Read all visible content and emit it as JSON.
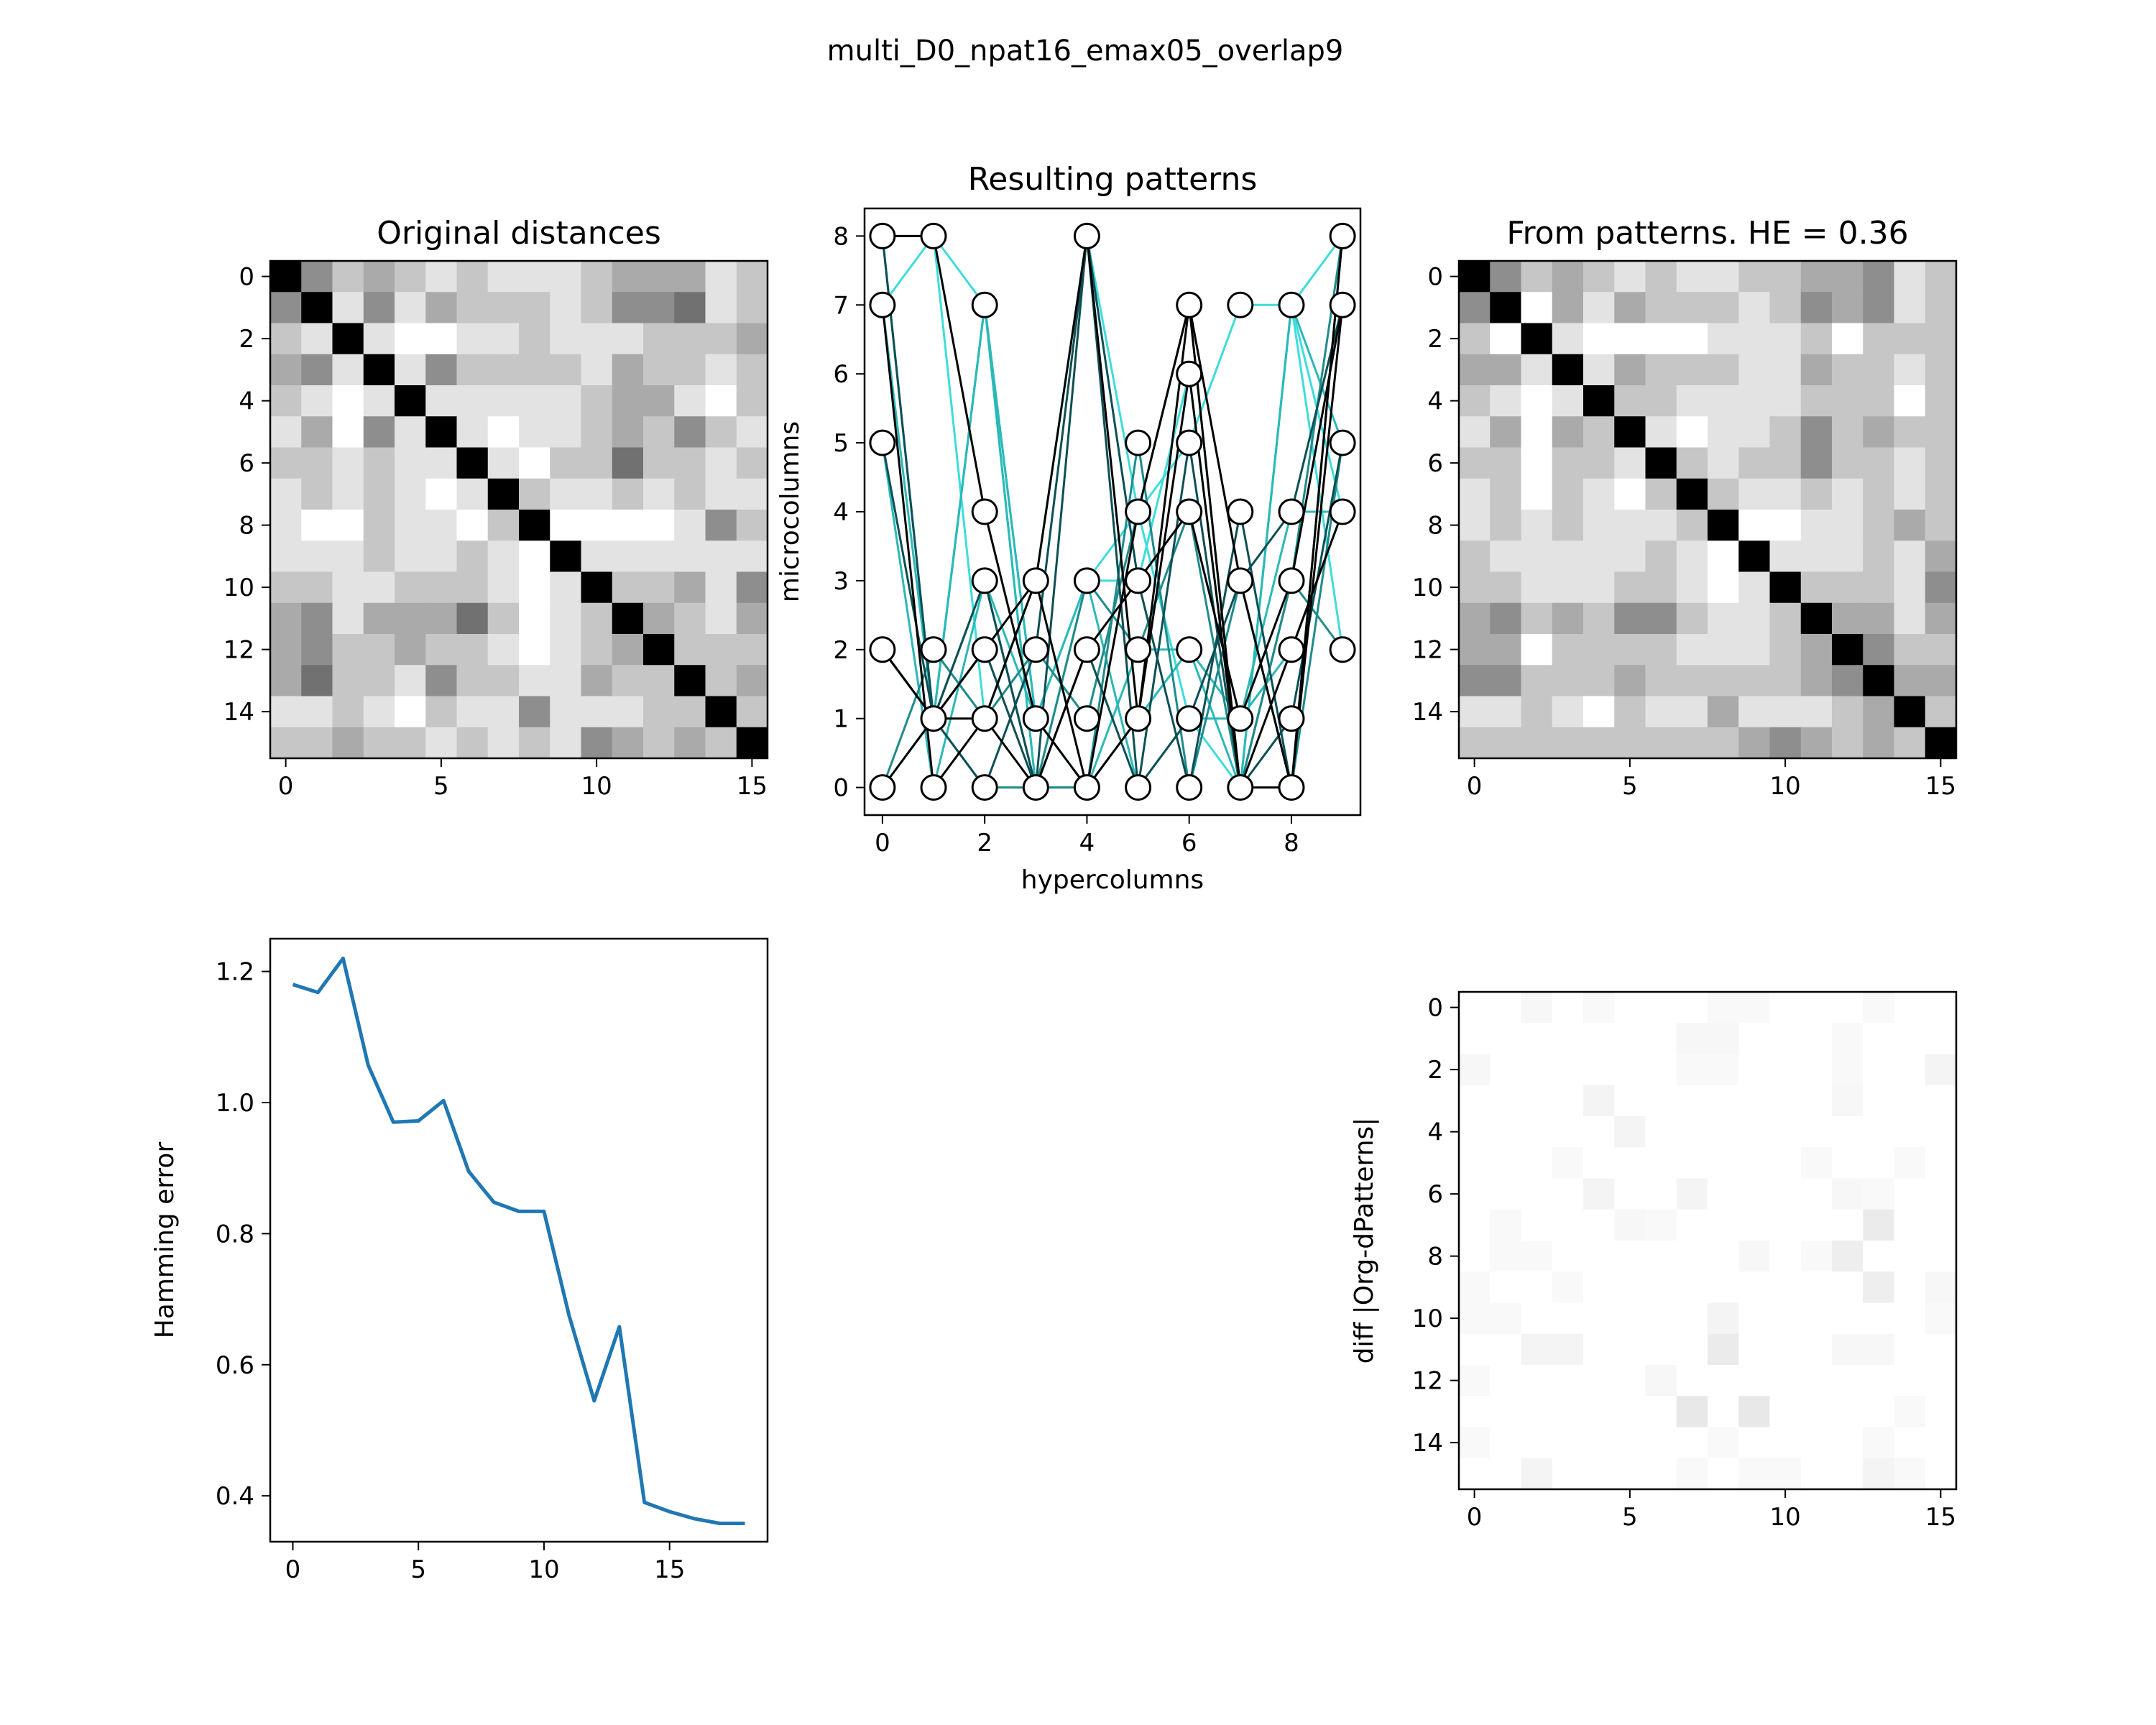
{
  "figure": {
    "title": "multi_D0_npat16_emax05_overlap9"
  },
  "colors": {
    "line_blue": "#1f77b4",
    "pattern_colors": [
      "#000000",
      "#0d4f55",
      "#1f8b8b",
      "#2cb8b8",
      "#3fdcdc"
    ]
  },
  "chart_data": [
    {
      "id": "original",
      "type": "heatmap",
      "title": "Original distances",
      "xlabel": "",
      "ylabel": "",
      "size": 16,
      "colormap": "gray_r",
      "vmin": 0,
      "vmax": 9,
      "xticks": [
        0,
        5,
        10,
        15
      ],
      "yticks": [
        0,
        2,
        4,
        6,
        8,
        10,
        12,
        14
      ],
      "values": [
        [
          9,
          4,
          2,
          3,
          2,
          1,
          2,
          1,
          1,
          1,
          2,
          3,
          3,
          3,
          1,
          2
        ],
        [
          4,
          9,
          1,
          4,
          1,
          3,
          2,
          2,
          2,
          1,
          2,
          4,
          4,
          5,
          1,
          2
        ],
        [
          2,
          1,
          9,
          1,
          0,
          0,
          1,
          1,
          2,
          1,
          1,
          1,
          2,
          2,
          2,
          3
        ],
        [
          3,
          4,
          1,
          9,
          1,
          4,
          2,
          2,
          2,
          2,
          1,
          3,
          2,
          2,
          1,
          2
        ],
        [
          2,
          1,
          0,
          1,
          9,
          1,
          1,
          1,
          1,
          1,
          2,
          3,
          3,
          1,
          0,
          2
        ],
        [
          1,
          3,
          0,
          4,
          1,
          9,
          1,
          0,
          1,
          1,
          2,
          3,
          2,
          4,
          2,
          1
        ],
        [
          2,
          2,
          1,
          2,
          1,
          1,
          9,
          1,
          0,
          2,
          2,
          5,
          2,
          2,
          1,
          2
        ],
        [
          1,
          2,
          1,
          2,
          1,
          0,
          1,
          9,
          2,
          1,
          1,
          2,
          1,
          2,
          1,
          1
        ],
        [
          1,
          0,
          0,
          2,
          1,
          1,
          0,
          2,
          9,
          0,
          0,
          0,
          0,
          1,
          4,
          2
        ],
        [
          1,
          1,
          1,
          2,
          1,
          1,
          2,
          1,
          0,
          9,
          1,
          1,
          1,
          1,
          1,
          1
        ],
        [
          2,
          2,
          1,
          1,
          2,
          2,
          2,
          1,
          0,
          1,
          9,
          2,
          2,
          3,
          1,
          4
        ],
        [
          3,
          4,
          1,
          3,
          3,
          3,
          5,
          2,
          0,
          1,
          2,
          9,
          3,
          2,
          1,
          3
        ],
        [
          3,
          4,
          2,
          2,
          3,
          2,
          2,
          1,
          0,
          1,
          2,
          3,
          9,
          2,
          2,
          2
        ],
        [
          3,
          5,
          2,
          2,
          1,
          4,
          2,
          2,
          1,
          1,
          3,
          2,
          2,
          9,
          2,
          3
        ],
        [
          1,
          1,
          2,
          1,
          0,
          2,
          1,
          1,
          4,
          1,
          1,
          1,
          2,
          2,
          9,
          2
        ],
        [
          2,
          2,
          3,
          2,
          2,
          1,
          2,
          1,
          2,
          1,
          4,
          3,
          2,
          3,
          2,
          9
        ]
      ]
    },
    {
      "id": "patterns",
      "type": "line",
      "title": "Resulting patterns",
      "xlabel": "hypercolumns",
      "ylabel": "microcolumns",
      "xlim": [
        -0.35,
        9.35
      ],
      "ylim": [
        -0.4,
        8.4
      ],
      "xticks": [
        0,
        2,
        4,
        6,
        8
      ],
      "yticks": [
        0,
        1,
        2,
        3,
        4,
        5,
        6,
        7,
        8
      ],
      "series": [
        {
          "values": [
            8,
            8,
            1,
            3,
            8,
            4,
            5,
            7,
            7,
            8
          ],
          "color_index": 4
        },
        {
          "values": [
            7,
            8,
            7,
            0,
            3,
            3,
            6,
            0,
            7,
            4
          ],
          "color_index": 4
        },
        {
          "values": [
            2,
            1,
            7,
            1,
            3,
            4,
            1,
            0,
            7,
            2
          ],
          "color_index": 4
        },
        {
          "values": [
            0,
            1,
            7,
            0,
            0,
            2,
            2,
            1,
            4,
            4
          ],
          "color_index": 3
        },
        {
          "values": [
            7,
            1,
            7,
            1,
            0,
            1,
            2,
            0,
            7,
            5
          ],
          "color_index": 3
        },
        {
          "values": [
            5,
            0,
            3,
            1,
            3,
            0,
            1,
            1,
            2,
            4
          ],
          "color_index": 3
        },
        {
          "values": [
            2,
            1,
            0,
            0,
            3,
            2,
            4,
            0,
            3,
            8
          ],
          "color_index": 2
        },
        {
          "values": [
            8,
            1,
            3,
            0,
            0,
            5,
            0,
            3,
            0,
            5
          ],
          "color_index": 2
        },
        {
          "values": [
            0,
            2,
            1,
            2,
            1,
            4,
            7,
            0,
            3,
            2
          ],
          "color_index": 2
        },
        {
          "values": [
            8,
            1,
            2,
            0,
            8,
            0,
            1,
            3,
            4,
            7
          ],
          "color_index": 1
        },
        {
          "values": [
            5,
            1,
            0,
            2,
            8,
            3,
            0,
            4,
            0,
            8
          ],
          "color_index": 1
        },
        {
          "values": [
            2,
            1,
            3,
            0,
            2,
            0,
            5,
            0,
            1,
            5
          ],
          "color_index": 1
        },
        {
          "values": [
            7,
            0,
            1,
            3,
            8,
            1,
            7,
            0,
            2,
            4
          ],
          "color_index": 0
        },
        {
          "values": [
            8,
            8,
            4,
            1,
            0,
            4,
            7,
            3,
            0,
            7
          ],
          "color_index": 0
        },
        {
          "values": [
            0,
            1,
            2,
            3,
            0,
            1,
            6,
            0,
            0,
            8
          ],
          "color_index": 0
        },
        {
          "values": [
            2,
            1,
            1,
            0,
            2,
            3,
            4,
            1,
            3,
            7
          ],
          "color_index": 0
        }
      ]
    },
    {
      "id": "from_patterns",
      "type": "heatmap",
      "title": "From patterns. HE = 0.36",
      "xlabel": "",
      "ylabel": "",
      "size": 16,
      "colormap": "gray_r",
      "vmin": 0,
      "vmax": 9,
      "xticks": [
        0,
        5,
        10,
        15
      ],
      "yticks": [
        0,
        2,
        4,
        6,
        8,
        10,
        12,
        14
      ],
      "values": [
        [
          9,
          4,
          2,
          3,
          2,
          1,
          2,
          1,
          1,
          2,
          2,
          3,
          3,
          4,
          1,
          2
        ],
        [
          4,
          9,
          0,
          3,
          1,
          3,
          2,
          2,
          2,
          1,
          2,
          4,
          3,
          4,
          1,
          2
        ],
        [
          2,
          0,
          9,
          1,
          0,
          0,
          0,
          0,
          1,
          1,
          1,
          2,
          0,
          2,
          2,
          2
        ],
        [
          3,
          3,
          1,
          9,
          1,
          3,
          2,
          2,
          2,
          1,
          1,
          3,
          2,
          2,
          1,
          2
        ],
        [
          2,
          1,
          0,
          1,
          9,
          2,
          2,
          1,
          1,
          1,
          1,
          2,
          2,
          2,
          0,
          2
        ],
        [
          1,
          3,
          0,
          3,
          2,
          9,
          1,
          0,
          1,
          1,
          2,
          4,
          2,
          3,
          2,
          2
        ],
        [
          2,
          2,
          0,
          2,
          2,
          1,
          9,
          2,
          1,
          2,
          2,
          4,
          2,
          2,
          1,
          2
        ],
        [
          1,
          2,
          0,
          2,
          1,
          0,
          2,
          9,
          2,
          1,
          1,
          2,
          1,
          2,
          1,
          2
        ],
        [
          1,
          2,
          1,
          2,
          1,
          1,
          1,
          2,
          9,
          0,
          0,
          1,
          1,
          2,
          3,
          2
        ],
        [
          2,
          1,
          1,
          1,
          1,
          1,
          2,
          1,
          0,
          9,
          1,
          1,
          1,
          2,
          1,
          3
        ],
        [
          2,
          2,
          1,
          1,
          1,
          2,
          2,
          1,
          0,
          1,
          9,
          2,
          2,
          2,
          1,
          4
        ],
        [
          3,
          4,
          2,
          3,
          2,
          4,
          4,
          2,
          1,
          1,
          2,
          9,
          3,
          3,
          1,
          3
        ],
        [
          3,
          3,
          0,
          2,
          2,
          2,
          2,
          1,
          1,
          1,
          2,
          3,
          9,
          4,
          2,
          2
        ],
        [
          4,
          4,
          2,
          2,
          2,
          3,
          2,
          2,
          2,
          2,
          2,
          3,
          4,
          9,
          3,
          3
        ],
        [
          1,
          1,
          2,
          1,
          0,
          2,
          1,
          1,
          3,
          1,
          1,
          1,
          2,
          3,
          9,
          2
        ],
        [
          2,
          2,
          2,
          2,
          2,
          2,
          2,
          2,
          2,
          3,
          4,
          3,
          2,
          3,
          2,
          9
        ]
      ]
    },
    {
      "id": "hamming",
      "type": "line",
      "title": "",
      "xlabel": "",
      "ylabel": "Hamming error",
      "xlim": [
        -0.9,
        18.9
      ],
      "ylim": [
        0.33,
        1.25
      ],
      "xticks": [
        0,
        5,
        10,
        15
      ],
      "yticks": [
        0.4,
        0.6,
        0.8,
        1.0,
        1.2
      ],
      "ytick_labels": [
        "0.4",
        "0.6",
        "0.8",
        "1.0",
        "1.2"
      ],
      "x": [
        0,
        1,
        2,
        3,
        4,
        5,
        6,
        7,
        8,
        9,
        10,
        11,
        12,
        13,
        14,
        15,
        16,
        17,
        18
      ],
      "values": [
        1.18,
        1.168,
        1.22,
        1.057,
        0.97,
        0.972,
        1.003,
        0.895,
        0.848,
        0.834,
        0.834,
        0.675,
        0.545,
        0.658,
        0.39,
        0.376,
        0.365,
        0.358,
        0.358
      ]
    },
    {
      "id": "diff",
      "type": "heatmap",
      "title": "",
      "xlabel": "",
      "ylabel": "diff |Org-dPatterns|",
      "size": 16,
      "colormap": "gray_r",
      "vmin": 0,
      "vmax": 9,
      "xticks": [
        0,
        5,
        10,
        15
      ],
      "yticks": [
        0,
        2,
        4,
        6,
        8,
        10,
        12,
        14
      ],
      "values": [
        [
          0,
          0,
          0.3,
          0,
          0.2,
          0,
          0,
          0,
          0.2,
          0.2,
          0,
          0,
          0,
          0.2,
          0,
          0
        ],
        [
          0,
          0,
          0,
          0,
          0,
          0,
          0,
          0.3,
          0.3,
          0,
          0,
          0,
          0.2,
          0,
          0,
          0
        ],
        [
          0.3,
          0,
          0,
          0,
          0,
          0,
          0,
          0.2,
          0.2,
          0,
          0,
          0,
          0.2,
          0,
          0,
          0.4
        ],
        [
          0,
          0,
          0,
          0,
          0.4,
          0,
          0,
          0,
          0,
          0,
          0,
          0,
          0.3,
          0,
          0,
          0
        ],
        [
          0,
          0,
          0,
          0,
          0,
          0.4,
          0,
          0,
          0,
          0,
          0,
          0,
          0,
          0,
          0,
          0
        ],
        [
          0,
          0,
          0,
          0.2,
          0,
          0,
          0,
          0,
          0,
          0,
          0,
          0.2,
          0,
          0,
          0.2,
          0
        ],
        [
          0,
          0,
          0,
          0,
          0.4,
          0,
          0,
          0.4,
          0,
          0,
          0,
          0,
          0.3,
          0.2,
          0,
          0
        ],
        [
          0,
          0.2,
          0,
          0,
          0,
          0.3,
          0.2,
          0,
          0,
          0,
          0,
          0,
          0,
          0.7,
          0,
          0
        ],
        [
          0,
          0.2,
          0.2,
          0,
          0,
          0,
          0,
          0,
          0,
          0.3,
          0,
          0.2,
          0.6,
          0,
          0,
          0
        ],
        [
          0.2,
          0,
          0,
          0.2,
          0,
          0,
          0,
          0,
          0,
          0,
          0,
          0,
          0,
          0.6,
          0,
          0.3
        ],
        [
          0.2,
          0.2,
          0,
          0,
          0,
          0,
          0,
          0,
          0.4,
          0,
          0,
          0,
          0,
          0,
          0,
          0.2
        ],
        [
          0,
          0,
          0.4,
          0.4,
          0,
          0,
          0,
          0,
          0.7,
          0,
          0,
          0,
          0.3,
          0.3,
          0,
          0
        ],
        [
          0.2,
          0,
          0,
          0,
          0,
          0,
          0.3,
          0,
          0,
          0,
          0,
          0,
          0,
          0,
          0,
          0
        ],
        [
          0,
          0,
          0,
          0,
          0,
          0,
          0,
          0.8,
          0,
          0.8,
          0,
          0,
          0,
          0,
          0.2,
          0
        ],
        [
          0.2,
          0,
          0,
          0,
          0,
          0,
          0,
          0,
          0.2,
          0,
          0,
          0,
          0,
          0.2,
          0,
          0
        ],
        [
          0,
          0,
          0.4,
          0,
          0,
          0,
          0,
          0.2,
          0,
          0.2,
          0.2,
          0,
          0,
          0.4,
          0.2,
          0
        ]
      ]
    }
  ]
}
